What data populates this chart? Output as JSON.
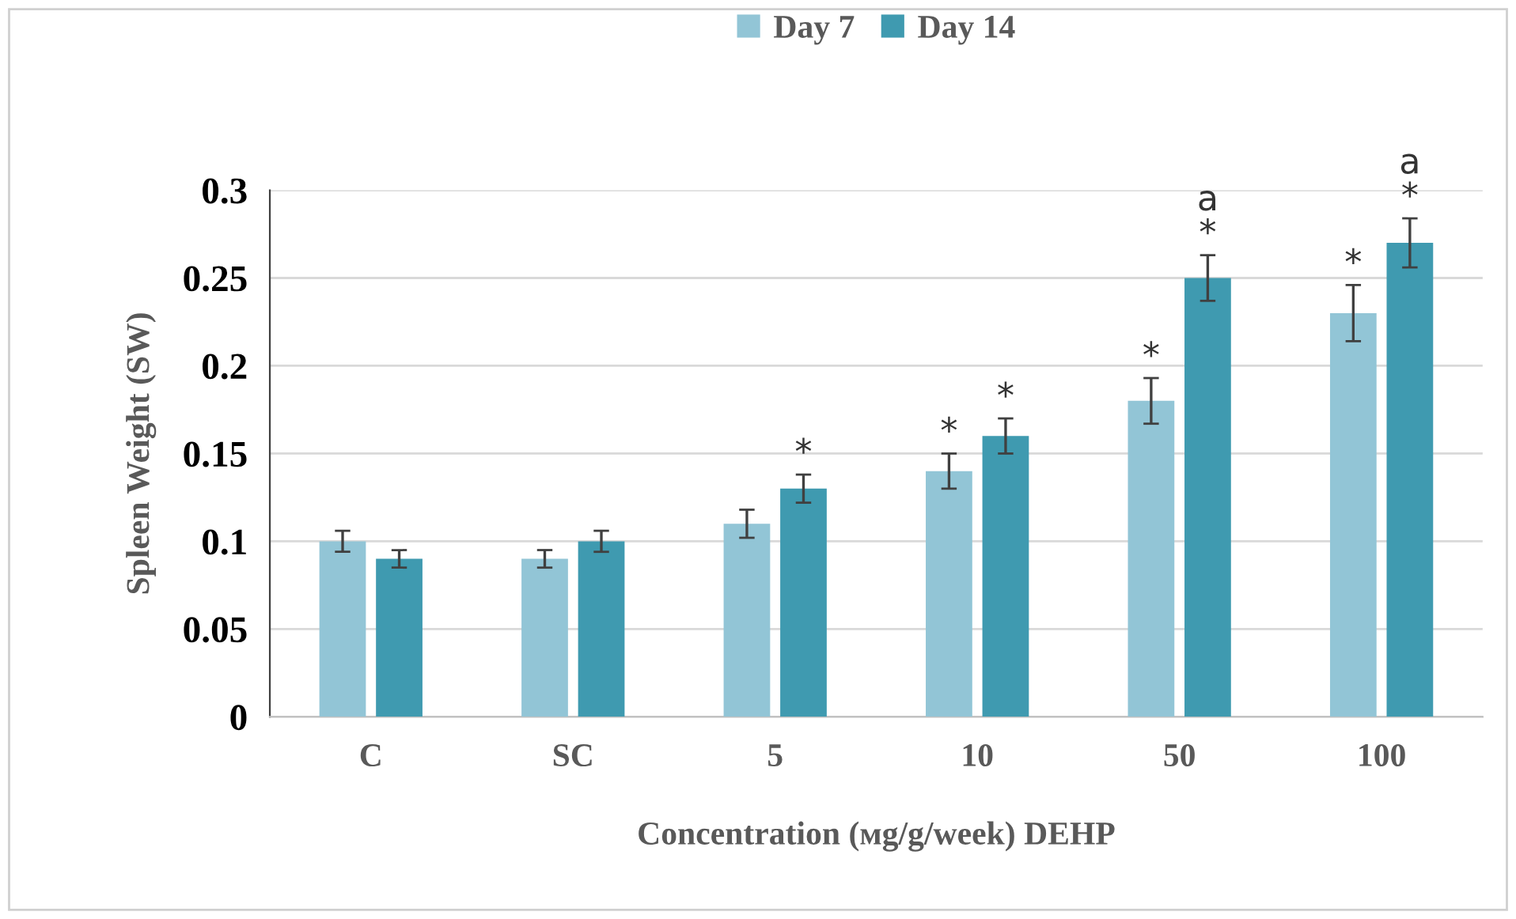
{
  "chart_data": {
    "type": "bar",
    "xlabel": "Concentration (мg/g/week) DEHP",
    "ylabel": "Spleen Weight (SW)",
    "categories": [
      "C",
      "SC",
      "5",
      "10",
      "50",
      "100"
    ],
    "series": [
      {
        "name": "Day 7",
        "color": "#92c5d6",
        "values": [
          0.1,
          0.09,
          0.11,
          0.14,
          0.18,
          0.23
        ],
        "errors": [
          0.006,
          0.005,
          0.008,
          0.01,
          0.013,
          0.016
        ],
        "value_labels": [
          null,
          null,
          null,
          "*",
          "*",
          "*"
        ]
      },
      {
        "name": "Day 14",
        "color": "#3f9ab0",
        "values": [
          0.09,
          0.1,
          0.13,
          0.16,
          0.25,
          0.27
        ],
        "errors": [
          0.005,
          0.006,
          0.008,
          0.01,
          0.013,
          0.014
        ],
        "value_labels": [
          null,
          null,
          "*",
          "*",
          "a\n*",
          "a\n*"
        ]
      }
    ],
    "ylim": [
      0,
      0.3
    ],
    "yticks": [
      0,
      0.05,
      0.1,
      0.15,
      0.2,
      0.25,
      0.3
    ],
    "grid": "y",
    "legend": "top"
  }
}
